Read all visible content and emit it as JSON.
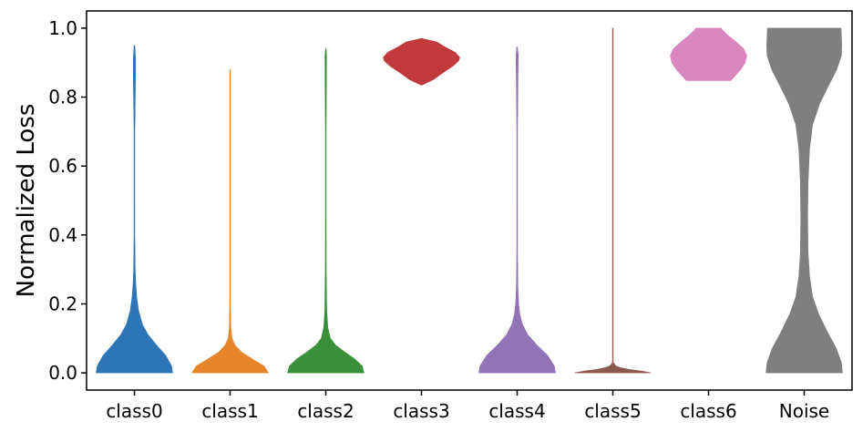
{
  "chart_data": {
    "type": "violin",
    "title": "",
    "xlabel": "",
    "ylabel": "Normalized Loss",
    "ylim": [
      -0.05,
      1.05
    ],
    "yticks": [
      0.0,
      0.2,
      0.4,
      0.6,
      0.8,
      1.0
    ],
    "ytick_labels": [
      "0.0",
      "0.2",
      "0.4",
      "0.6",
      "0.8",
      "1.0"
    ],
    "grid": false,
    "categories": [
      "class0",
      "class1",
      "class2",
      "class3",
      "class4",
      "class5",
      "class6",
      "Noise"
    ],
    "series": [
      {
        "color": "#2e75b6",
        "y_min": 0.0,
        "y_max": 0.95,
        "density": [
          [
            0.0,
            1.0
          ],
          [
            0.02,
            0.97
          ],
          [
            0.05,
            0.82
          ],
          [
            0.08,
            0.58
          ],
          [
            0.11,
            0.36
          ],
          [
            0.14,
            0.21
          ],
          [
            0.18,
            0.11
          ],
          [
            0.22,
            0.06
          ],
          [
            0.26,
            0.035
          ],
          [
            0.3,
            0.02
          ],
          [
            0.4,
            0.01
          ],
          [
            0.5,
            0.007
          ],
          [
            0.6,
            0.006
          ],
          [
            0.7,
            0.01
          ],
          [
            0.8,
            0.022
          ],
          [
            0.87,
            0.03
          ],
          [
            0.91,
            0.03
          ],
          [
            0.95,
            0.0
          ]
        ]
      },
      {
        "color": "#e6842a",
        "y_min": 0.0,
        "y_max": 0.88,
        "density": [
          [
            0.0,
            1.0
          ],
          [
            0.02,
            0.88
          ],
          [
            0.04,
            0.58
          ],
          [
            0.06,
            0.3
          ],
          [
            0.08,
            0.13
          ],
          [
            0.1,
            0.05
          ],
          [
            0.13,
            0.02
          ],
          [
            0.2,
            0.008
          ],
          [
            0.4,
            0.005
          ],
          [
            0.6,
            0.004
          ],
          [
            0.8,
            0.004
          ],
          [
            0.88,
            0.0
          ]
        ]
      },
      {
        "color": "#3a8f3a",
        "y_min": 0.0,
        "y_max": 0.94,
        "density": [
          [
            0.0,
            1.0
          ],
          [
            0.02,
            0.95
          ],
          [
            0.04,
            0.76
          ],
          [
            0.06,
            0.5
          ],
          [
            0.08,
            0.26
          ],
          [
            0.1,
            0.12
          ],
          [
            0.13,
            0.055
          ],
          [
            0.18,
            0.025
          ],
          [
            0.3,
            0.012
          ],
          [
            0.5,
            0.008
          ],
          [
            0.7,
            0.008
          ],
          [
            0.85,
            0.018
          ],
          [
            0.92,
            0.02
          ],
          [
            0.94,
            0.0
          ]
        ]
      },
      {
        "color": "#c0393b",
        "y_min": 0.835,
        "y_max": 0.97,
        "density": [
          [
            0.835,
            0.0
          ],
          [
            0.85,
            0.3
          ],
          [
            0.87,
            0.55
          ],
          [
            0.89,
            0.82
          ],
          [
            0.905,
            0.97
          ],
          [
            0.915,
            1.0
          ],
          [
            0.93,
            0.88
          ],
          [
            0.945,
            0.62
          ],
          [
            0.96,
            0.4
          ],
          [
            0.97,
            0.0
          ]
        ]
      },
      {
        "color": "#9273b6",
        "y_min": 0.0,
        "y_max": 0.945,
        "density": [
          [
            0.0,
            1.0
          ],
          [
            0.02,
            0.97
          ],
          [
            0.05,
            0.8
          ],
          [
            0.08,
            0.52
          ],
          [
            0.11,
            0.28
          ],
          [
            0.14,
            0.14
          ],
          [
            0.17,
            0.07
          ],
          [
            0.2,
            0.04
          ],
          [
            0.25,
            0.02
          ],
          [
            0.35,
            0.01
          ],
          [
            0.5,
            0.007
          ],
          [
            0.7,
            0.008
          ],
          [
            0.85,
            0.022
          ],
          [
            0.92,
            0.03
          ],
          [
            0.945,
            0.0
          ]
        ]
      },
      {
        "color": "#8b5a4e",
        "y_min": 0.0,
        "y_max": 1.0,
        "density": [
          [
            0.0,
            1.0
          ],
          [
            0.005,
            0.75
          ],
          [
            0.01,
            0.42
          ],
          [
            0.015,
            0.2
          ],
          [
            0.02,
            0.08
          ],
          [
            0.03,
            0.01
          ],
          [
            0.1,
            0.004
          ],
          [
            0.5,
            0.003
          ],
          [
            1.0,
            0.0
          ]
        ]
      },
      {
        "color": "#d986be",
        "y_min": 0.848,
        "y_max": 1.0,
        "density": [
          [
            0.848,
            0.58
          ],
          [
            0.86,
            0.68
          ],
          [
            0.88,
            0.84
          ],
          [
            0.9,
            0.96
          ],
          [
            0.92,
            1.0
          ],
          [
            0.94,
            0.92
          ],
          [
            0.96,
            0.72
          ],
          [
            0.98,
            0.5
          ],
          [
            0.995,
            0.36
          ],
          [
            1.0,
            0.33
          ]
        ]
      },
      {
        "color": "#7f7f7f",
        "y_min": 0.0,
        "y_max": 1.0,
        "density": [
          [
            0.0,
            1.0
          ],
          [
            0.03,
            0.97
          ],
          [
            0.07,
            0.84
          ],
          [
            0.12,
            0.6
          ],
          [
            0.17,
            0.38
          ],
          [
            0.22,
            0.22
          ],
          [
            0.28,
            0.14
          ],
          [
            0.35,
            0.1
          ],
          [
            0.45,
            0.09
          ],
          [
            0.55,
            0.1
          ],
          [
            0.65,
            0.14
          ],
          [
            0.72,
            0.22
          ],
          [
            0.78,
            0.4
          ],
          [
            0.83,
            0.62
          ],
          [
            0.88,
            0.85
          ],
          [
            0.92,
            0.97
          ],
          [
            0.95,
            0.98
          ],
          [
            0.98,
            0.97
          ],
          [
            1.0,
            0.96
          ]
        ]
      }
    ]
  }
}
